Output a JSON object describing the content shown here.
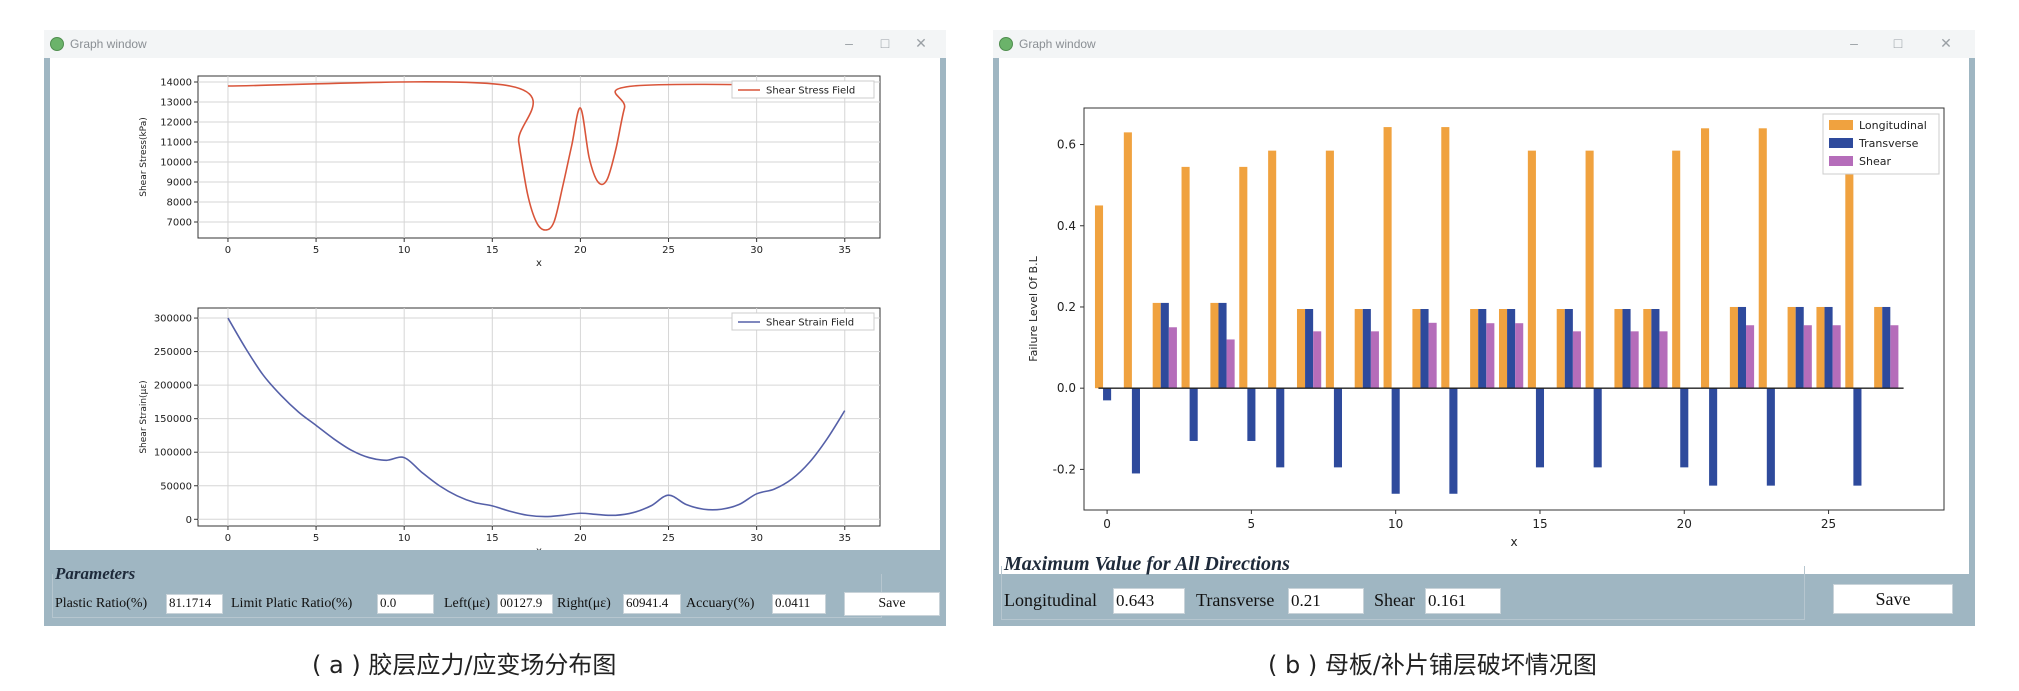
{
  "left_window": {
    "title": "Graph window",
    "controls": {
      "minimize": "–",
      "maximize": "□",
      "close": "✕"
    },
    "stress_chart": {
      "type": "line",
      "ylabel": "Shear Stress(kPa)",
      "xlabel": "x",
      "legend": "Shear Stress Field",
      "legend_position": "top-right",
      "color": "#d9553a",
      "grid": true,
      "xlim": [
        -1.7,
        37
      ],
      "ylim": [
        6200,
        14300
      ],
      "xticks": [
        "0",
        "5",
        "10",
        "15",
        "20",
        "25",
        "30",
        "35"
      ],
      "yticks": [
        "7000",
        "8000",
        "9000",
        "10000",
        "11000",
        "12000",
        "13000",
        "14000"
      ],
      "x": [
        0,
        16,
        16.5,
        17,
        17.5,
        18,
        18.5,
        19,
        19.5,
        20,
        20.5,
        21,
        21.5,
        22,
        22.5,
        23,
        35
      ],
      "y": [
        13800,
        13800,
        11000,
        8400,
        7000,
        6600,
        7000,
        8800,
        10800,
        12700,
        10200,
        9000,
        9100,
        10600,
        12700,
        13800,
        13800
      ]
    },
    "strain_chart": {
      "type": "line",
      "ylabel": "Shear Strain(με)",
      "xlabel": "x",
      "legend": "Shear Strain Field",
      "legend_position": "top-right",
      "color": "#5560a8",
      "grid": true,
      "xlim": [
        -1.7,
        37
      ],
      "ylim": [
        -10000,
        315000
      ],
      "xticks": [
        "0",
        "5",
        "10",
        "15",
        "20",
        "25",
        "30",
        "35"
      ],
      "yticks": [
        "0",
        "50000",
        "100000",
        "150000",
        "200000",
        "250000",
        "300000"
      ],
      "x": [
        0,
        1,
        2,
        3,
        4,
        5,
        6,
        7,
        8,
        9,
        10,
        11,
        12,
        13,
        14,
        15,
        16,
        17,
        18,
        19,
        20,
        21,
        22,
        23,
        24,
        25,
        26,
        27,
        28,
        29,
        30,
        31,
        32,
        33,
        34,
        35
      ],
      "y": [
        300000,
        255000,
        215000,
        185000,
        160000,
        140000,
        120000,
        103000,
        92000,
        88000,
        92000,
        70000,
        50000,
        35000,
        25000,
        20000,
        12000,
        6000,
        4000,
        6000,
        9000,
        7000,
        6000,
        10000,
        20000,
        36000,
        22000,
        15000,
        15000,
        22000,
        38000,
        45000,
        60000,
        85000,
        120000,
        162000
      ]
    },
    "parameters": {
      "title": "Parameters",
      "plastic_ratio_label": "Plastic Ratio(%)",
      "plastic_ratio_value": "81.1714",
      "limit_ratio_label": "Limit Platic Ratio(%)",
      "limit_ratio_value": "0.0",
      "left_label": "Left(με)",
      "left_value": "00127.9",
      "right_label": "Right(με)",
      "right_value": "60941.4",
      "accuracy_label": "Accuary(%)",
      "accuracy_value": "0.0411",
      "save_label": "Save"
    }
  },
  "right_window": {
    "title": "Graph window",
    "controls": {
      "minimize": "–",
      "maximize": "□",
      "close": "✕"
    },
    "chart_data": {
      "type": "bar",
      "ylabel": "Failure Level Of B.L",
      "xlabel": "x",
      "grid": false,
      "legend_position": "top-right",
      "xlim": [
        -0.8,
        29
      ],
      "ylim": [
        -0.3,
        0.69
      ],
      "xticks": [
        "0",
        "5",
        "10",
        "15",
        "20",
        "25"
      ],
      "yticks": [
        "-0.2",
        "0.0",
        "0.2",
        "0.4",
        "0.6"
      ],
      "x": [
        0,
        1,
        2,
        3,
        4,
        5,
        6,
        7,
        8,
        9,
        10,
        11,
        12,
        13,
        14,
        15,
        16,
        17,
        18,
        19,
        20,
        21,
        22,
        23,
        24,
        25,
        26,
        27
      ],
      "series": [
        {
          "name": "Longitudinal",
          "color": "#f0a23f",
          "values": [
            0.45,
            0.63,
            0.21,
            0.545,
            0.21,
            0.545,
            0.585,
            0.195,
            0.585,
            0.195,
            0.643,
            0.195,
            0.643,
            0.195,
            0.195,
            0.585,
            0.195,
            0.585,
            0.195,
            0.195,
            0.585,
            0.64,
            0.2,
            0.64,
            0.2,
            0.2,
            0.585,
            0.2
          ]
        },
        {
          "name": "Transverse",
          "color": "#2e4a9c",
          "values": [
            -0.03,
            -0.21,
            0.21,
            -0.13,
            0.21,
            -0.13,
            -0.195,
            0.195,
            -0.195,
            0.195,
            -0.26,
            0.195,
            -0.26,
            0.195,
            0.195,
            -0.195,
            0.195,
            -0.195,
            0.195,
            0.195,
            -0.195,
            -0.24,
            0.2,
            -0.24,
            0.2,
            0.2,
            -0.24,
            0.2
          ]
        },
        {
          "name": "Shear",
          "color": "#b56dba",
          "values": [
            0,
            0,
            0.15,
            0,
            0.12,
            0,
            0,
            0.14,
            0,
            0.14,
            0,
            0.161,
            0,
            0.16,
            0.16,
            0,
            0.14,
            0,
            0.14,
            0.14,
            0,
            0,
            0.155,
            0,
            0.155,
            0.155,
            0,
            0.155
          ]
        }
      ]
    },
    "parameters": {
      "title": "Maximum Value for All Directions",
      "longitudinal_label": "Longitudinal",
      "longitudinal_value": "0.643",
      "transverse_label": "Transverse",
      "transverse_value": "0.21",
      "shear_label": "Shear",
      "shear_value": "0.161",
      "save_label": "Save"
    }
  },
  "captions": {
    "left": "( a ) 胶层应力/应变场分布图",
    "right": "( b ) 母板/补片铺层破坏情况图"
  }
}
